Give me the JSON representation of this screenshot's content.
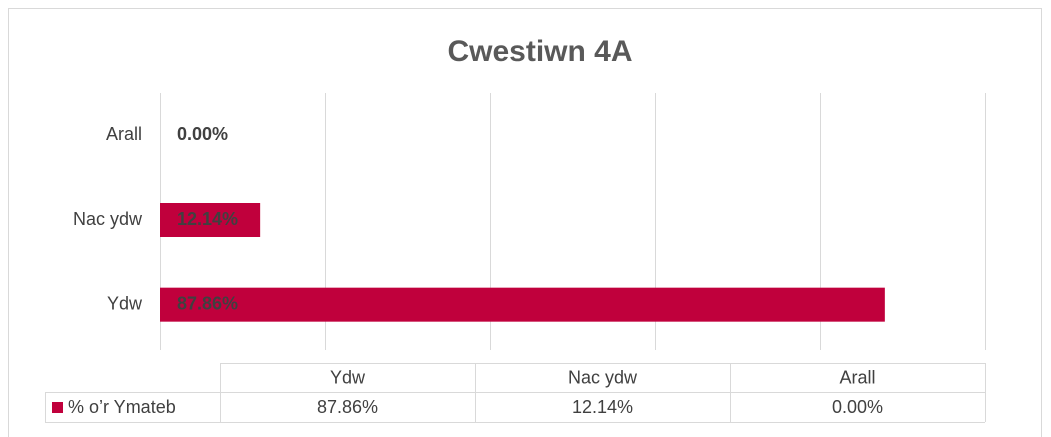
{
  "chart_data": {
    "type": "barh",
    "title": "Cwestiwn 4A",
    "categories": [
      "Ydw",
      "Nac ydw",
      "Arall"
    ],
    "series": [
      {
        "name": "% o’r Ymateb",
        "color": "#c0003c",
        "values": [
          87.86,
          12.14,
          0.0
        ],
        "value_labels": [
          "87.86%",
          "12.14%",
          "0.00%"
        ]
      }
    ],
    "xlim": [
      0,
      100
    ],
    "xticks": [
      0,
      20,
      40,
      60,
      80,
      100
    ],
    "grid": true,
    "data_table": true
  }
}
